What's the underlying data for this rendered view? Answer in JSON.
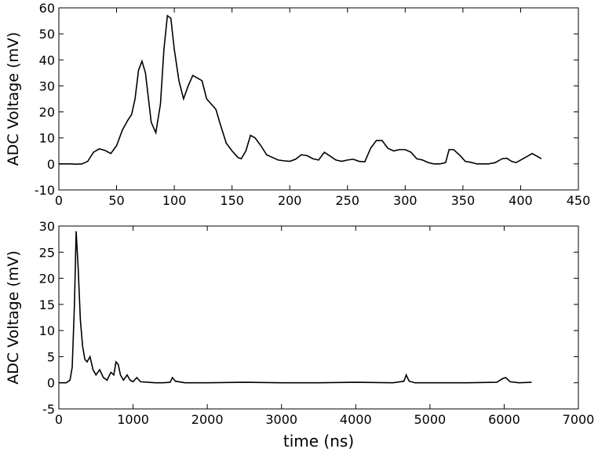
{
  "chart_data": [
    {
      "type": "line",
      "ylabel": "ADC Voltage (mV)",
      "x": [
        0,
        5,
        10,
        15,
        20,
        25,
        30,
        35,
        40,
        45,
        50,
        55,
        60,
        63,
        66,
        69,
        72,
        75,
        80,
        84,
        88,
        91,
        94,
        97,
        100,
        104,
        108,
        112,
        116,
        120,
        124,
        128,
        132,
        136,
        140,
        145,
        150,
        155,
        158,
        162,
        166,
        170,
        175,
        180,
        185,
        190,
        195,
        200,
        205,
        210,
        215,
        220,
        225,
        230,
        235,
        240,
        245,
        250,
        255,
        260,
        265,
        270,
        275,
        280,
        285,
        290,
        295,
        300,
        305,
        310,
        315,
        320,
        325,
        330,
        335,
        338,
        342,
        348,
        352,
        358,
        362,
        368,
        372,
        378,
        384,
        388,
        392,
        396,
        400,
        406,
        410,
        414,
        418
      ],
      "series": [
        {
          "color": "#000000",
          "values": [
            0,
            0,
            0,
            -0.1,
            0,
            1,
            4.5,
            5.8,
            5.2,
            4,
            7,
            13,
            17,
            19,
            25,
            36,
            39.5,
            35,
            16,
            12,
            23,
            44,
            57,
            56,
            44,
            32,
            25,
            30,
            34,
            33,
            32,
            25,
            23,
            21,
            15,
            8,
            5,
            2.5,
            2,
            5,
            11,
            10,
            7,
            3.5,
            2.5,
            1.5,
            1.2,
            1,
            1.8,
            3.5,
            3.2,
            2,
            1.5,
            4.5,
            3,
            1.5,
            1,
            1.5,
            1.8,
            1,
            0.8,
            6,
            9,
            9,
            6,
            5,
            5.5,
            5.5,
            4.5,
            2,
            1.5,
            0.5,
            0,
            0,
            0.5,
            5.5,
            5.5,
            3,
            1,
            0.5,
            0,
            0,
            0,
            0.5,
            2,
            2.2,
            1,
            0.5,
            1.5,
            3,
            4,
            3,
            2
          ]
        }
      ],
      "xlim": [
        0,
        450
      ],
      "xticks": [
        0,
        50,
        100,
        150,
        200,
        250,
        300,
        350,
        400,
        450
      ],
      "ylim": [
        -10,
        60
      ],
      "yticks": [
        -10,
        0,
        10,
        20,
        30,
        40,
        50,
        60
      ]
    },
    {
      "type": "line",
      "ylabel": "ADC Voltage (mV)",
      "xlabel": "time (ns)",
      "x": [
        0,
        100,
        150,
        180,
        210,
        233,
        260,
        290,
        320,
        350,
        380,
        420,
        460,
        500,
        550,
        600,
        650,
        700,
        740,
        770,
        800,
        830,
        870,
        920,
        960,
        1000,
        1050,
        1100,
        1200,
        1300,
        1400,
        1500,
        1530,
        1570,
        1700,
        2000,
        2500,
        3000,
        3500,
        4000,
        4500,
        4650,
        4680,
        4720,
        4800,
        5000,
        5500,
        5900,
        5980,
        6020,
        6080,
        6200,
        6370
      ],
      "series": [
        {
          "color": "#000000",
          "values": [
            0,
            0,
            0.5,
            3,
            15,
            29,
            22,
            12,
            7,
            4.5,
            4,
            5,
            2.5,
            1.5,
            2.5,
            1,
            0.5,
            2,
            1.5,
            4,
            3.5,
            1.5,
            0.5,
            1.5,
            0.5,
            0.2,
            1,
            0.2,
            0.1,
            0,
            0,
            0.1,
            1,
            0.3,
            0,
            0,
            0.1,
            0,
            0,
            0.1,
            0,
            0.3,
            1.5,
            0.3,
            0,
            0,
            0,
            0.1,
            0.8,
            1,
            0.2,
            0,
            0.1
          ]
        }
      ],
      "xlim": [
        0,
        7000
      ],
      "xticks": [
        0,
        1000,
        2000,
        3000,
        4000,
        5000,
        6000,
        7000
      ],
      "ylim": [
        -5,
        30
      ],
      "yticks": [
        -5,
        0,
        5,
        10,
        15,
        20,
        25,
        30
      ]
    }
  ]
}
